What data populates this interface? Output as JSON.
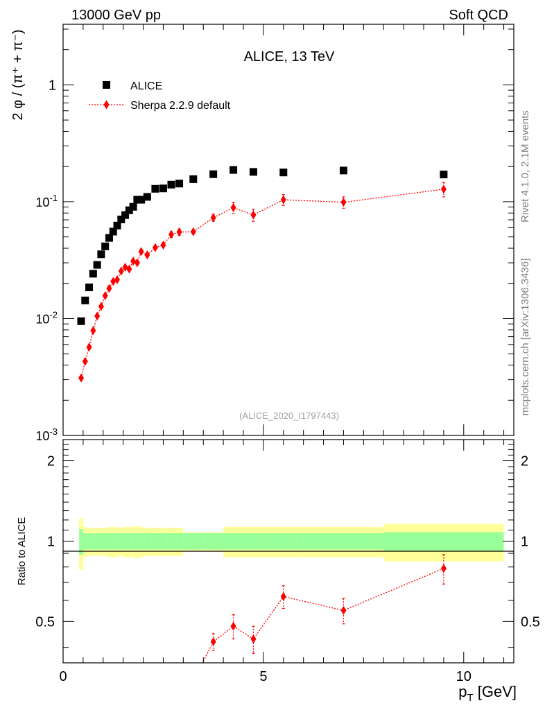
{
  "header": {
    "left": "13000 GeV pp",
    "right": "Soft QCD"
  },
  "side_labels": {
    "rivet": "Rivet 4.1.0,  2.1M events",
    "mcplots": "mcplots.cern.ch [arXiv:1306.3436]"
  },
  "chart_data": [
    {
      "panel": "main",
      "type": "scatter",
      "title": "ALICE, 13 TeV",
      "subtitle": "(ALICE_2020_I1797443)",
      "xlabel": "p_T [GeV]",
      "ylabel": "2 φ / (π⁺ + π⁻)",
      "yscale": "log",
      "xlim": [
        0,
        11.25
      ],
      "ylim": [
        0.001,
        3.3
      ],
      "ytick_labels": [
        "10^-3",
        "10^-2",
        "10^-1",
        "1"
      ],
      "legend_position": "top-left",
      "series": [
        {
          "name": "ALICE",
          "color": "#000000",
          "marker": "square",
          "x": [
            0.45,
            0.55,
            0.65,
            0.75,
            0.85,
            0.95,
            1.05,
            1.15,
            1.25,
            1.35,
            1.45,
            1.55,
            1.65,
            1.75,
            1.85,
            1.95,
            2.1,
            2.3,
            2.5,
            2.7,
            2.9,
            3.25,
            3.75,
            4.25,
            4.75,
            5.5,
            7.0,
            9.5
          ],
          "y": [
            0.0095,
            0.0143,
            0.0185,
            0.0242,
            0.0288,
            0.0355,
            0.0415,
            0.049,
            0.0555,
            0.0625,
            0.0705,
            0.0768,
            0.0845,
            0.0905,
            0.104,
            0.104,
            0.11,
            0.129,
            0.13,
            0.14,
            0.143,
            0.156,
            0.172,
            0.187,
            0.18,
            0.178,
            0.185,
            0.171
          ]
        },
        {
          "name": "Sherpa 2.2.9 default",
          "color": "#ff0000",
          "marker": "diamond",
          "line": "dotted",
          "x": [
            0.45,
            0.55,
            0.65,
            0.75,
            0.85,
            0.95,
            1.05,
            1.15,
            1.25,
            1.35,
            1.45,
            1.55,
            1.65,
            1.75,
            1.85,
            1.95,
            2.1,
            2.3,
            2.5,
            2.7,
            2.9,
            3.25,
            3.75,
            4.25,
            4.75,
            5.5,
            7.0,
            9.5
          ],
          "y": [
            0.0031,
            0.0043,
            0.0057,
            0.0079,
            0.0105,
            0.0127,
            0.0157,
            0.0181,
            0.0208,
            0.0215,
            0.0255,
            0.0275,
            0.0265,
            0.031,
            0.03,
            0.0375,
            0.035,
            0.0405,
            0.0425,
            0.0525,
            0.055,
            0.0553,
            0.073,
            0.089,
            0.077,
            0.104,
            0.099,
            0.128
          ],
          "yerr": [
            0,
            0,
            0,
            0,
            0,
            0,
            0,
            0,
            0,
            0,
            0,
            0,
            0,
            0,
            0,
            0,
            0,
            0,
            0,
            0.003,
            0.0035,
            0,
            0.005,
            0.01,
            0.009,
            0.011,
            0.011,
            0.018
          ]
        }
      ]
    },
    {
      "panel": "ratio",
      "type": "line",
      "ylabel": "Ratio to ALICE",
      "xlabel": "p_T [GeV]",
      "xlim": [
        0,
        11.25
      ],
      "ylim": [
        0.35,
        2.4
      ],
      "yticks": [
        "0.5",
        "1",
        "2"
      ],
      "xticks": [
        "0",
        "5",
        "10"
      ],
      "reference_line": 1.0,
      "bands": {
        "edges": [
          0.4,
          0.5,
          0.6,
          0.7,
          0.8,
          0.9,
          1.0,
          1.1,
          1.2,
          1.3,
          1.4,
          1.5,
          1.6,
          1.7,
          1.8,
          1.9,
          2.0,
          2.2,
          2.4,
          2.6,
          2.8,
          3.0,
          3.5,
          4.0,
          4.5,
          5.0,
          6.0,
          8.0,
          11.0
        ],
        "inner_color": "#99ff99",
        "outer_color": "#ffff99",
        "inner_half_width": [
          0.11,
          0.07,
          0.07,
          0.07,
          0.07,
          0.07,
          0.07,
          0.07,
          0.07,
          0.07,
          0.07,
          0.07,
          0.07,
          0.07,
          0.07,
          0.07,
          0.07,
          0.07,
          0.07,
          0.07,
          0.07,
          0.07,
          0.07,
          0.07,
          0.07,
          0.07,
          0.07,
          0.08
        ],
        "outer_half_width": [
          0.22,
          0.13,
          0.12,
          0.12,
          0.12,
          0.12,
          0.12,
          0.13,
          0.13,
          0.13,
          0.12,
          0.13,
          0.13,
          0.13,
          0.14,
          0.13,
          0.12,
          0.12,
          0.12,
          0.12,
          0.12,
          0.08,
          0.08,
          0.13,
          0.13,
          0.13,
          0.13,
          0.16
        ]
      },
      "series": [
        {
          "name": "Sherpa 2.2.9 default",
          "color": "#ff0000",
          "x": [
            3.75,
            4.25,
            4.75,
            5.5,
            7.0,
            9.5
          ],
          "y": [
            0.42,
            0.48,
            0.43,
            0.62,
            0.55,
            0.79
          ],
          "yerr": [
            0.03,
            0.05,
            0.05,
            0.06,
            0.06,
            0.1
          ]
        }
      ]
    }
  ]
}
